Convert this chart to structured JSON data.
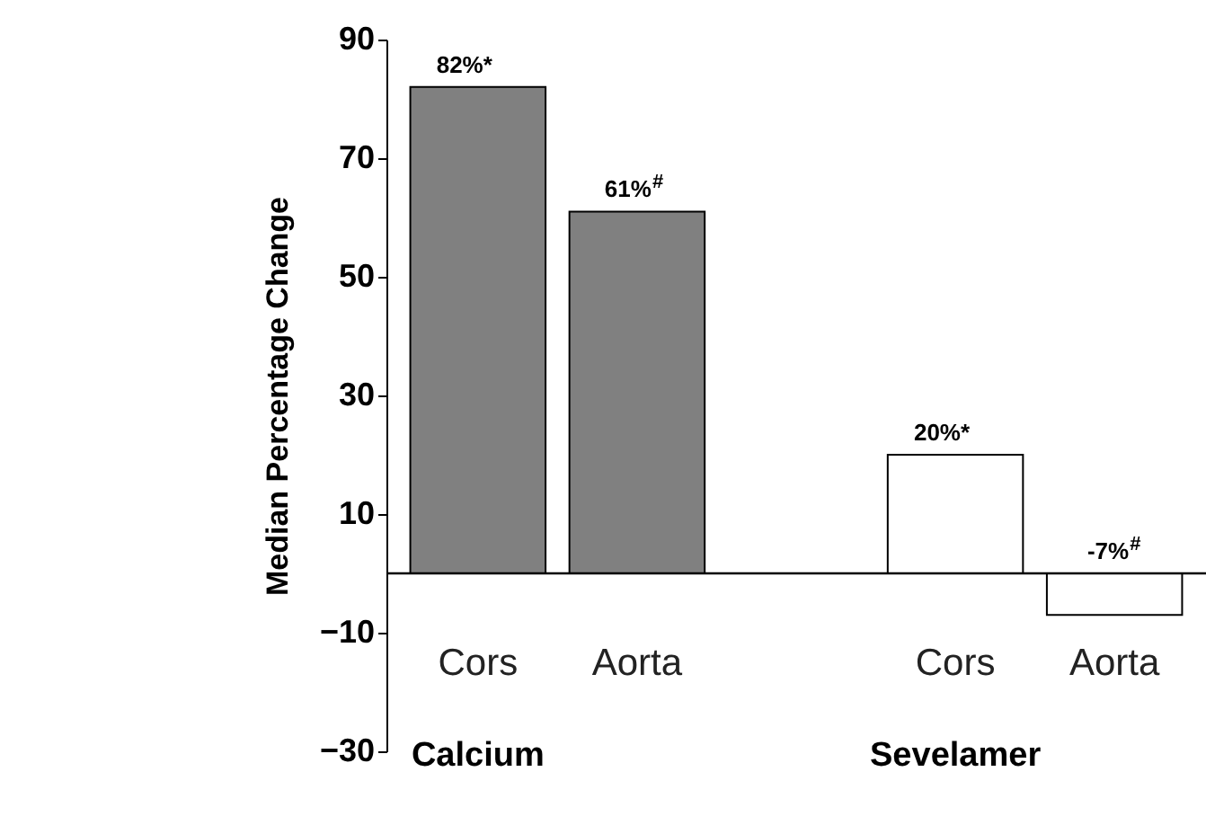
{
  "chart_data": {
    "type": "bar",
    "ylabel": "Median Percentage Change",
    "categories": [
      "Cors",
      "Aorta",
      "Cors",
      "Aorta"
    ],
    "values": [
      82,
      61,
      20,
      -7
    ],
    "colors": [
      "#808080",
      "#808080",
      "#ffffff",
      "#ffffff"
    ],
    "value_labels": [
      "82%*",
      "61%$^{#}$",
      "20%*",
      "-7%$^{#}$"
    ],
    "annotations": [
      "Calcium",
      "Sevelamer"
    ],
    "ylim": [
      -30,
      90
    ],
    "yticks": [
      -30,
      -10,
      10,
      30,
      50,
      70,
      90
    ],
    "grid": false
  }
}
